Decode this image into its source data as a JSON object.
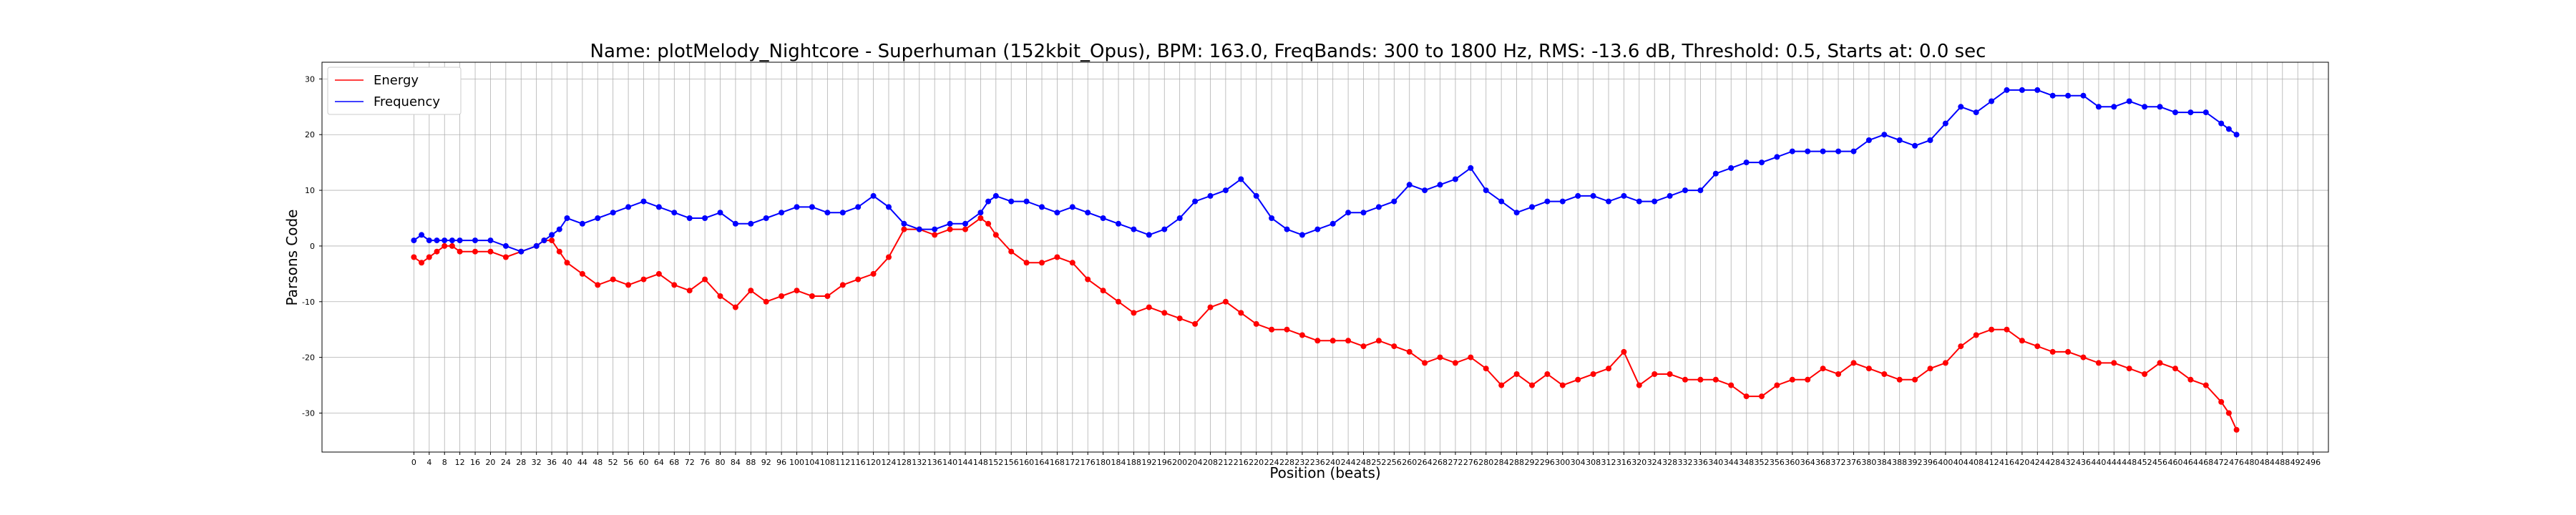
{
  "chart_data": {
    "type": "line",
    "title": "Name: plotMelody_Nightcore - Superhuman (152kbit_Opus), BPM: 163.0, FreqBands: 300 to 1800 Hz, RMS: -13.6 dB, Threshold: 0.5, Starts at: 0.0 sec",
    "xlabel": "Position (beats)",
    "ylabel": "Parsons Code",
    "xlim": [
      -24,
      500
    ],
    "ylim": [
      -37,
      33
    ],
    "xticks": [
      0,
      4,
      8,
      12,
      16,
      20,
      24,
      28,
      32,
      36,
      40,
      44,
      48,
      52,
      56,
      60,
      64,
      68,
      72,
      76,
      80,
      84,
      88,
      92,
      96,
      100,
      104,
      108,
      112,
      116,
      120,
      124,
      128,
      132,
      136,
      140,
      144,
      148,
      152,
      156,
      160,
      164,
      168,
      172,
      176,
      180,
      184,
      188,
      192,
      196,
      200,
      204,
      208,
      212,
      216,
      220,
      224,
      228,
      232,
      236,
      240,
      244,
      248,
      252,
      256,
      260,
      264,
      268,
      272,
      276,
      280,
      284,
      288,
      292,
      296,
      300,
      304,
      308,
      312,
      316,
      320,
      324,
      328,
      332,
      336,
      340,
      344,
      348,
      352,
      356,
      360,
      364,
      368,
      372,
      376,
      380,
      384,
      388,
      392,
      396,
      400,
      404,
      408,
      412,
      416,
      420,
      424,
      428,
      432,
      436,
      440,
      444,
      448,
      452,
      456,
      460,
      464,
      468,
      472,
      476,
      480,
      484,
      488,
      492,
      496
    ],
    "yticks": [
      30,
      20,
      10,
      0,
      -10,
      -20,
      -30
    ],
    "grid": true,
    "legend_position": "top-left",
    "series": [
      {
        "name": "Energy",
        "color": "#ff0000",
        "x": [
          0,
          2,
          4,
          6,
          8,
          10,
          12,
          16,
          20,
          24,
          28,
          32,
          34,
          36,
          38,
          40,
          44,
          48,
          52,
          56,
          60,
          64,
          68,
          72,
          76,
          80,
          84,
          88,
          92,
          96,
          100,
          104,
          108,
          112,
          116,
          120,
          124,
          128,
          132,
          136,
          140,
          144,
          148,
          150,
          152,
          156,
          160,
          164,
          168,
          172,
          176,
          180,
          184,
          188,
          192,
          196,
          200,
          204,
          208,
          212,
          216,
          220,
          224,
          228,
          232,
          236,
          240,
          244,
          248,
          252,
          256,
          260,
          264,
          268,
          272,
          276,
          280,
          284,
          288,
          292,
          296,
          300,
          304,
          308,
          312,
          316,
          320,
          324,
          328,
          332,
          336,
          340,
          344,
          348,
          352,
          356,
          360,
          364,
          368,
          372,
          376,
          380,
          384,
          388,
          392,
          396,
          400,
          404,
          408,
          412,
          416,
          420,
          424,
          428,
          432,
          436,
          440,
          444,
          448,
          452,
          456,
          460,
          464,
          468,
          472,
          474,
          476
        ],
        "y": [
          -2,
          -3,
          -2,
          -1,
          0,
          0,
          -1,
          -1,
          -1,
          -2,
          -1,
          0,
          1,
          1,
          -1,
          -3,
          -5,
          -7,
          -6,
          -7,
          -6,
          -5,
          -7,
          -8,
          -6,
          -9,
          -11,
          -8,
          -10,
          -9,
          -8,
          -9,
          -9,
          -7,
          -6,
          -5,
          -2,
          3,
          3,
          2,
          3,
          3,
          5,
          4,
          2,
          -1,
          -3,
          -3,
          -2,
          -3,
          -6,
          -8,
          -10,
          -12,
          -11,
          -12,
          -13,
          -14,
          -11,
          -10,
          -12,
          -14,
          -15,
          -15,
          -16,
          -17,
          -17,
          -17,
          -18,
          -17,
          -18,
          -19,
          -21,
          -20,
          -21,
          -20,
          -22,
          -25,
          -23,
          -25,
          -23,
          -25,
          -24,
          -23,
          -22,
          -19,
          -25,
          -23,
          -23,
          -24,
          -24,
          -24,
          -25,
          -27,
          -27,
          -25,
          -24,
          -24,
          -22,
          -23,
          -21,
          -22,
          -23,
          -24,
          -24,
          -22,
          -21,
          -18,
          -16,
          -15,
          -15,
          -17,
          -18,
          -19,
          -19,
          -20,
          -21,
          -21,
          -22,
          -23,
          -21,
          -22,
          -24,
          -25,
          -28,
          -30,
          -33
        ]
      },
      {
        "name": "Frequency",
        "color": "#0000ff",
        "x": [
          0,
          2,
          4,
          6,
          8,
          10,
          12,
          16,
          20,
          24,
          28,
          32,
          34,
          36,
          38,
          40,
          44,
          48,
          52,
          56,
          60,
          64,
          68,
          72,
          76,
          80,
          84,
          88,
          92,
          96,
          100,
          104,
          108,
          112,
          116,
          120,
          124,
          128,
          132,
          136,
          140,
          144,
          148,
          150,
          152,
          156,
          160,
          164,
          168,
          172,
          176,
          180,
          184,
          188,
          192,
          196,
          200,
          204,
          208,
          212,
          216,
          220,
          224,
          228,
          232,
          236,
          240,
          244,
          248,
          252,
          256,
          260,
          264,
          268,
          272,
          276,
          280,
          284,
          288,
          292,
          296,
          300,
          304,
          308,
          312,
          316,
          320,
          324,
          328,
          332,
          336,
          340,
          344,
          348,
          352,
          356,
          360,
          364,
          368,
          372,
          376,
          380,
          384,
          388,
          392,
          396,
          400,
          404,
          408,
          412,
          416,
          420,
          424,
          428,
          432,
          436,
          440,
          444,
          448,
          452,
          456,
          460,
          464,
          468,
          472,
          474,
          476
        ],
        "y": [
          1,
          2,
          1,
          1,
          1,
          1,
          1,
          1,
          1,
          0,
          -1,
          0,
          1,
          2,
          3,
          5,
          4,
          5,
          6,
          7,
          8,
          7,
          6,
          5,
          5,
          6,
          4,
          4,
          5,
          6,
          7,
          7,
          6,
          6,
          7,
          9,
          7,
          4,
          3,
          3,
          4,
          4,
          6,
          8,
          9,
          8,
          8,
          7,
          6,
          7,
          6,
          5,
          4,
          3,
          2,
          3,
          5,
          8,
          9,
          10,
          12,
          9,
          5,
          3,
          2,
          3,
          4,
          6,
          6,
          7,
          8,
          11,
          10,
          11,
          12,
          14,
          10,
          8,
          6,
          7,
          8,
          8,
          9,
          9,
          8,
          9,
          8,
          8,
          9,
          10,
          10,
          13,
          14,
          15,
          15,
          16,
          17,
          17,
          17,
          17,
          17,
          19,
          20,
          19,
          18,
          19,
          22,
          25,
          24,
          26,
          28,
          28,
          28,
          27,
          27,
          27,
          25,
          25,
          26,
          25,
          25,
          24,
          24,
          24,
          22,
          21,
          20
        ]
      }
    ]
  }
}
